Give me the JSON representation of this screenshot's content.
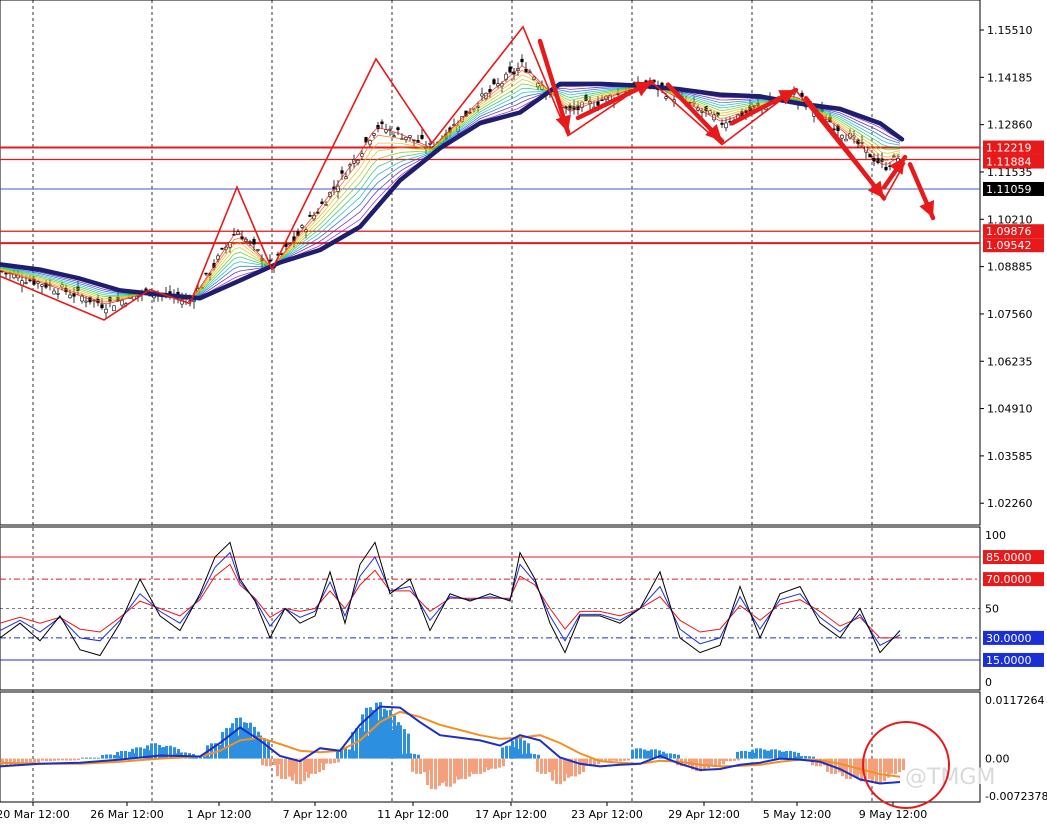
{
  "chart_data": {
    "type": "line",
    "main": {
      "ylim": [
        1.0165,
        1.1635
      ],
      "price_labels": [
        "1.15510",
        "1.14185",
        "1.12860",
        "1.11535",
        "1.10210",
        "1.08885",
        "1.07560",
        "1.06235",
        "1.04910",
        "1.03585",
        "1.02260"
      ],
      "price_values": [
        1.1551,
        1.14185,
        1.1286,
        1.11535,
        1.1021,
        1.08885,
        1.0756,
        1.06235,
        1.0491,
        1.03585,
        1.0226
      ],
      "levels": [
        {
          "label": "1.12219",
          "value": 1.12219,
          "color": "#e8191a"
        },
        {
          "label": "1.11884",
          "value": 1.11884,
          "color": "#e8191a"
        },
        {
          "label": "1.09876",
          "value": 1.09876,
          "color": "#e8191a"
        },
        {
          "label": "1.09542",
          "value": 1.09542,
          "color": "#e8191a"
        }
      ],
      "current": {
        "label": "1.11059",
        "value": 1.11059,
        "color": "#3a5fd0"
      },
      "zigzag_x": [
        0,
        104,
        150,
        190,
        237,
        272,
        376,
        432,
        523,
        568,
        650,
        722,
        795,
        884,
        905
      ],
      "zigzag_y": [
        1.0862,
        1.0739,
        1.0824,
        1.0785,
        1.1111,
        1.088,
        1.147,
        1.1235,
        1.156,
        1.1255,
        1.141,
        1.123,
        1.1385,
        1.1075,
        1.118
      ],
      "ma_x": [
        0,
        40,
        80,
        120,
        160,
        200,
        240,
        280,
        320,
        360,
        400,
        440,
        480,
        520,
        560,
        600,
        640,
        680,
        720,
        760,
        800,
        840,
        880,
        902
      ],
      "ma_y": [
        1.0895,
        1.088,
        1.0855,
        1.0822,
        1.081,
        1.08,
        1.085,
        1.09,
        1.0935,
        1.1,
        1.113,
        1.122,
        1.129,
        1.132,
        1.14,
        1.14,
        1.1395,
        1.1385,
        1.137,
        1.1365,
        1.1345,
        1.133,
        1.129,
        1.1245
      ],
      "arrows": [
        {
          "x1": 540,
          "y1": 1.152,
          "x2": 568,
          "y2": 1.1265
        },
        {
          "x1": 578,
          "y1": 1.1305,
          "x2": 652,
          "y2": 1.1405
        },
        {
          "x1": 668,
          "y1": 1.1398,
          "x2": 722,
          "y2": 1.124
        },
        {
          "x1": 732,
          "y1": 1.129,
          "x2": 796,
          "y2": 1.1383
        },
        {
          "x1": 806,
          "y1": 1.136,
          "x2": 884,
          "y2": 1.108
        },
        {
          "x1": 884,
          "y1": 1.111,
          "x2": 905,
          "y2": 1.1195
        },
        {
          "x1": 910,
          "y1": 1.1175,
          "x2": 933,
          "y2": 1.1025
        }
      ]
    },
    "oscillator": {
      "ylim": [
        0,
        100
      ],
      "tick_labels": [
        "100",
        "50",
        "0"
      ],
      "tick_values": [
        100,
        50,
        0
      ],
      "levels": [
        {
          "label": "85.0000",
          "value": 85,
          "color": "#e8191a"
        },
        {
          "label": "70.0000",
          "value": 70,
          "color": "#e8191a"
        },
        {
          "label": "30.0000",
          "value": 30,
          "color": "#1b2fd6"
        },
        {
          "label": "15.0000",
          "value": 15,
          "color": "#1b2fd6"
        }
      ],
      "x": [
        0,
        20,
        40,
        60,
        80,
        100,
        120,
        140,
        160,
        180,
        200,
        215,
        230,
        240,
        255,
        270,
        285,
        300,
        315,
        330,
        345,
        360,
        375,
        390,
        410,
        430,
        450,
        470,
        490,
        510,
        520,
        535,
        550,
        565,
        580,
        600,
        620,
        640,
        660,
        680,
        700,
        720,
        740,
        760,
        780,
        800,
        820,
        840,
        860,
        880,
        900
      ],
      "black": [
        30,
        40,
        28,
        45,
        22,
        18,
        40,
        70,
        45,
        35,
        60,
        85,
        95,
        70,
        55,
        30,
        50,
        40,
        45,
        75,
        40,
        80,
        95,
        60,
        70,
        35,
        60,
        55,
        60,
        55,
        88,
        70,
        40,
        20,
        45,
        45,
        40,
        50,
        75,
        30,
        20,
        25,
        65,
        30,
        60,
        65,
        40,
        30,
        50,
        20,
        35
      ],
      "blue": [
        35,
        42,
        34,
        44,
        30,
        28,
        42,
        60,
        48,
        40,
        58,
        78,
        88,
        68,
        56,
        38,
        50,
        44,
        48,
        68,
        45,
        72,
        85,
        62,
        65,
        42,
        58,
        56,
        58,
        56,
        80,
        68,
        45,
        28,
        46,
        46,
        42,
        50,
        65,
        36,
        26,
        30,
        58,
        36,
        56,
        60,
        44,
        34,
        46,
        25,
        32
      ],
      "red": [
        40,
        44,
        40,
        44,
        36,
        34,
        44,
        55,
        50,
        45,
        56,
        72,
        80,
        66,
        57,
        44,
        50,
        48,
        50,
        62,
        50,
        66,
        76,
        62,
        62,
        48,
        57,
        57,
        57,
        57,
        72,
        66,
        50,
        36,
        48,
        48,
        45,
        50,
        58,
        42,
        34,
        36,
        52,
        42,
        53,
        56,
        48,
        38,
        44,
        30,
        30
      ]
    },
    "macd": {
      "ylim": [
        -0.00835,
        0.0128
      ],
      "tick_labels": [
        "0.0117264",
        "0.00",
        "-0.0072378"
      ],
      "tick_values": [
        0.0117264,
        0,
        -0.0072378
      ],
      "hist_x": [
        10,
        30,
        50,
        70,
        90,
        110,
        125,
        140,
        155,
        170,
        185,
        200,
        215,
        230,
        240,
        250,
        260,
        270,
        285,
        300,
        315,
        330,
        345,
        360,
        370,
        380,
        390,
        400,
        410,
        420,
        435,
        450,
        465,
        480,
        495,
        510,
        520,
        530,
        545,
        560,
        575,
        590,
        605,
        620,
        640,
        655,
        670,
        685,
        700,
        715,
        730,
        745,
        760,
        775,
        790,
        805,
        820,
        835,
        850,
        865,
        880,
        895
      ],
      "hist_v": [
        -0.0015,
        -0.001,
        -0.0005,
        -0.0004,
        0.0002,
        0.0008,
        0.0015,
        0.0022,
        0.003,
        0.0025,
        0.0012,
        0.0005,
        0.003,
        0.006,
        0.008,
        0.007,
        0.0045,
        -0.0015,
        -0.004,
        -0.005,
        -0.003,
        -0.001,
        0.002,
        0.006,
        0.01,
        0.011,
        0.0095,
        0.0065,
        0.001,
        -0.003,
        -0.006,
        -0.0055,
        -0.004,
        -0.003,
        -0.002,
        0.0025,
        0.004,
        0.001,
        -0.003,
        -0.005,
        -0.0035,
        -0.0015,
        -0.0005,
        -0.0005,
        0.002,
        0.0018,
        0.001,
        -0.0015,
        -0.0025,
        -0.0015,
        -0.0005,
        0.0015,
        0.002,
        0.0018,
        0.0015,
        0.0005,
        -0.0015,
        -0.003,
        -0.004,
        -0.0045,
        -0.005,
        -0.003
      ],
      "blue_x": [
        0,
        40,
        80,
        120,
        160,
        200,
        220,
        240,
        260,
        280,
        300,
        320,
        340,
        360,
        380,
        400,
        420,
        440,
        460,
        480,
        500,
        520,
        540,
        560,
        580,
        600,
        620,
        640,
        660,
        680,
        700,
        720,
        740,
        760,
        780,
        800,
        820,
        840,
        860,
        880,
        900
      ],
      "blue_v": [
        -0.0015,
        -0.001,
        -0.0008,
        -0.0002,
        0.0006,
        0.0004,
        0.003,
        0.006,
        0.0035,
        0.0005,
        -0.0005,
        0.002,
        0.0015,
        0.0065,
        0.01,
        0.0098,
        0.007,
        0.0045,
        0.004,
        0.0035,
        0.0025,
        0.0045,
        0.0035,
        0.0002,
        -0.001,
        -0.0015,
        -0.0012,
        -0.001,
        0.0005,
        -0.001,
        -0.0022,
        -0.002,
        -0.0012,
        -0.0008,
        0.0,
        -0.0002,
        -0.0006,
        -0.002,
        -0.004,
        -0.0048,
        -0.0045
      ],
      "orange_x": [
        0,
        40,
        80,
        120,
        160,
        200,
        220,
        240,
        260,
        280,
        300,
        320,
        340,
        360,
        380,
        400,
        420,
        440,
        460,
        480,
        500,
        520,
        540,
        560,
        580,
        600,
        620,
        640,
        660,
        680,
        700,
        720,
        740,
        760,
        780,
        800,
        820,
        840,
        860,
        880,
        900
      ],
      "orange_v": [
        -0.0008,
        -0.001,
        -0.001,
        -0.0006,
        0.0,
        0.0004,
        0.0015,
        0.0035,
        0.004,
        0.0028,
        0.0015,
        0.0012,
        0.0015,
        0.0035,
        0.007,
        0.009,
        0.008,
        0.0065,
        0.0055,
        0.0045,
        0.0038,
        0.004,
        0.0045,
        0.003,
        0.001,
        -0.0005,
        -0.0008,
        -0.001,
        -0.0004,
        -0.0006,
        -0.0012,
        -0.0015,
        -0.0014,
        -0.0012,
        -0.0006,
        -0.0002,
        -0.0003,
        -0.001,
        -0.002,
        -0.003,
        -0.0035
      ]
    },
    "time_labels": [
      "20 Mar 12:00",
      "26 Mar 12:00",
      "1 Apr 12:00",
      "7 Apr 12:00",
      "11 Apr 12:00",
      "17 Apr 12:00",
      "23 Apr 12:00",
      "29 Apr 12:00",
      "5 May 12:00",
      "9 May 12:00"
    ],
    "time_x": [
      33,
      127,
      219,
      315,
      413,
      511,
      607,
      704,
      797,
      893
    ],
    "watermark": "@TMGM",
    "colors": {
      "zigzag": "#e8191a",
      "ma": "#1f1e6e",
      "arrow": "#e8191a",
      "hist_pos": "#2d8fe0",
      "hist_neg": "#f4a07c",
      "macd_line": "#1a2ec8",
      "signal_line": "#f39020",
      "osc_black": "#000000",
      "osc_blue": "#1b2fd6",
      "osc_red": "#e8191a"
    }
  }
}
